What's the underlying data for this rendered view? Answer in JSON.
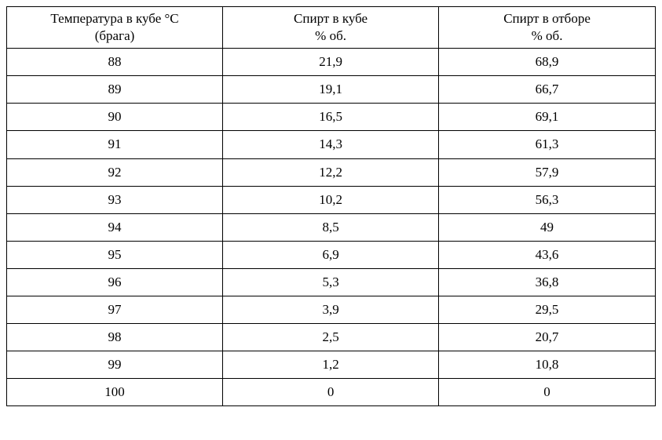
{
  "table": {
    "type": "table",
    "columns": [
      {
        "line1": "Температура в кубе °С",
        "line2": "(брага)"
      },
      {
        "line1": "Спирт в кубе",
        "line2": "% об."
      },
      {
        "line1": "Спирт в отборе",
        "line2": "% об."
      }
    ],
    "rows": [
      [
        "88",
        "21,9",
        "68,9"
      ],
      [
        "89",
        "19,1",
        "66,7"
      ],
      [
        "90",
        "16,5",
        "69,1"
      ],
      [
        "91",
        "14,3",
        "61,3"
      ],
      [
        "92",
        "12,2",
        "57,9"
      ],
      [
        "93",
        "10,2",
        "56,3"
      ],
      [
        "94",
        "8,5",
        "49"
      ],
      [
        "95",
        "6,9",
        "43,6"
      ],
      [
        "96",
        "5,3",
        "36,8"
      ],
      [
        "97",
        "3,9",
        "29,5"
      ],
      [
        "98",
        "2,5",
        "20,7"
      ],
      [
        "99",
        "1,2",
        "10,8"
      ],
      [
        "100",
        "0",
        "0"
      ]
    ],
    "border_color": "#000000",
    "background_color": "#ffffff",
    "text_color": "#000000",
    "font_family": "Times New Roman",
    "font_size_pt": 13,
    "column_align": [
      "center",
      "center",
      "center"
    ]
  }
}
